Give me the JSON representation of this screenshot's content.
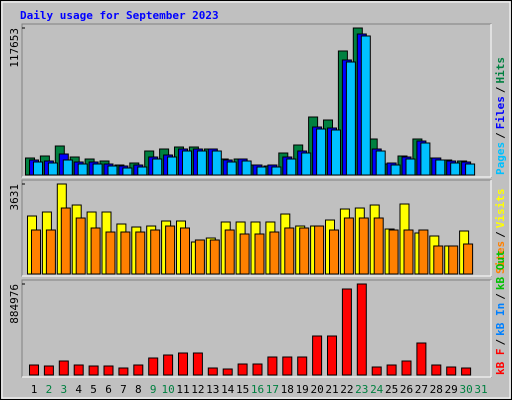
{
  "chart_data": [
    {
      "type": "bar",
      "title": "Daily usage for September 2023",
      "legend_separator": "/",
      "legend_order": "reverse",
      "ylim": [
        0,
        117653
      ],
      "yticks": [
        117653
      ],
      "series": [
        {
          "name": "Hits",
          "color": "#008040",
          "values": [
            13607,
            15208,
            23212,
            14407,
            12806,
            11204,
            8004,
            9605,
            19210,
            20810,
            22411,
            22411,
            20810,
            12806,
            12806,
            8004,
            7204,
            17609,
            24012,
            46418,
            44017,
            99250,
            117653,
            28815,
            8804,
            15208,
            28815,
            13607,
            12006,
            11204,
            0
          ]
        },
        {
          "name": "Files",
          "color": "#0000ff",
          "values": [
            12006,
            11206,
            16808,
            10405,
            10405,
            8804,
            7204,
            8004,
            14407,
            16008,
            20810,
            20810,
            20810,
            12006,
            12806,
            8004,
            8004,
            14407,
            19210,
            38419,
            37619,
            92046,
            112856,
            20810,
            9605,
            14407,
            27214,
            13607,
            11206,
            10405,
            0
          ]
        },
        {
          "name": "Pages",
          "color": "#00c0ff",
          "values": [
            10405,
            9605,
            12006,
            8804,
            8804,
            7204,
            5603,
            6403,
            12806,
            14407,
            19210,
            19210,
            19210,
            10405,
            11206,
            6403,
            6403,
            12806,
            17609,
            36818,
            36018,
            90445,
            111256,
            19210,
            8004,
            12806,
            25613,
            12006,
            9605,
            8804,
            0
          ]
        }
      ]
    },
    {
      "type": "bar",
      "legend_separator": "/",
      "legend_order": "reverse",
      "ylim": [
        0,
        3631
      ],
      "yticks": [
        3631
      ],
      "series": [
        {
          "name": "Visits",
          "color": "#ffff00",
          "values": [
            2340,
            2501,
            3631,
            2783,
            2501,
            2501,
            2017,
            1896,
            1936,
            2138,
            2138,
            1291,
            1452,
            2098,
            2098,
            2098,
            2098,
            2420,
            1936,
            1936,
            2178,
            2622,
            2662,
            2783,
            1815,
            2824,
            1654,
            1533,
            1130,
            1735,
            0
          ]
        },
        {
          "name": "Sites",
          "color": "#ff8000",
          "values": [
            1775,
            1775,
            2662,
            2259,
            1856,
            1694,
            1694,
            1694,
            1775,
            1936,
            1856,
            1372,
            1372,
            1775,
            1614,
            1614,
            1694,
            1856,
            1856,
            1936,
            1775,
            2259,
            2259,
            2259,
            1775,
            1775,
            1775,
            1130,
            1130,
            1210,
            0
          ]
        }
      ]
    },
    {
      "type": "bar",
      "legend_separator": "/",
      "legend_order": "forward",
      "ylim": [
        0,
        884976
      ],
      "yticks": [
        884976
      ],
      "categories": [
        "1",
        "2",
        "3",
        "4",
        "5",
        "6",
        "7",
        "8",
        "9",
        "10",
        "11",
        "12",
        "13",
        "14",
        "15",
        "16",
        "17",
        "18",
        "19",
        "20",
        "21",
        "22",
        "23",
        "24",
        "25",
        "26",
        "27",
        "28",
        "29",
        "30",
        "31"
      ],
      "category_colors": [
        "#000000",
        "#008040",
        "#008040",
        "#000000",
        "#000000",
        "#000000",
        "#000000",
        "#000000",
        "#008040",
        "#008040",
        "#000000",
        "#000000",
        "#000000",
        "#000000",
        "#000000",
        "#008040",
        "#008040",
        "#000000",
        "#000000",
        "#000000",
        "#000000",
        "#000000",
        "#008040",
        "#008040",
        "#000000",
        "#000000",
        "#000000",
        "#000000",
        "#000000",
        "#008040",
        "#008040"
      ],
      "series": [
        {
          "name": "kB F",
          "color": "#ff0000",
          "values": [
            97250,
            87525,
            136150,
            97250,
            87525,
            87525,
            68075,
            97250,
            165325,
            194500,
            213950,
            213950,
            68075,
            58350,
            106975,
            106975,
            175050,
            175050,
            175050,
            379275,
            379275,
            836350,
            884976,
            77800,
            97250,
            136150,
            311200,
            97250,
            77800,
            68075,
            0
          ]
        }
      ],
      "legend_only": [
        {
          "name": "kB In",
          "color": "#0080ff"
        },
        {
          "name": "kB Out",
          "color": "#00c000"
        }
      ]
    }
  ]
}
